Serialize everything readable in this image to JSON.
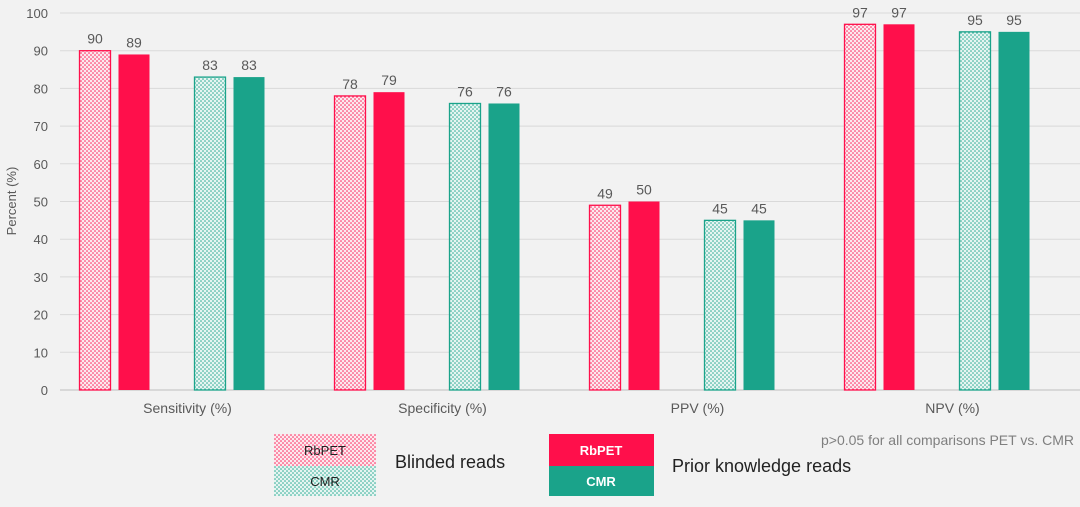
{
  "chart_data": {
    "type": "bar",
    "categories": [
      "Sensitivity (%)",
      "Specificity (%)",
      "PPV (%)",
      "NPV (%)"
    ],
    "series": [
      {
        "name": "RbPET",
        "group": "Blinded reads",
        "style": "dotted",
        "color": "#ff0f4b",
        "values": [
          90,
          78,
          49,
          97
        ]
      },
      {
        "name": "RbPET",
        "group": "Prior knowledge reads",
        "style": "solid",
        "color": "#ff0f4b",
        "values": [
          89,
          79,
          50,
          97
        ]
      },
      {
        "name": "CMR",
        "group": "Blinded reads",
        "style": "dotted",
        "color": "#1aa38a",
        "values": [
          83,
          76,
          45,
          95
        ]
      },
      {
        "name": "CMR",
        "group": "Prior knowledge reads",
        "style": "solid",
        "color": "#1aa38a",
        "values": [
          83,
          76,
          45,
          95
        ]
      }
    ],
    "data_labels": [
      [
        "90",
        "78",
        "49",
        "97"
      ],
      [
        "89",
        "79",
        "50",
        "97"
      ],
      [
        "83",
        "76",
        "45",
        "95"
      ],
      [
        "83",
        "76",
        "45",
        "95"
      ]
    ],
    "ylabel": "Percent (%)",
    "ylim": [
      0,
      100
    ],
    "yticks": [
      0,
      10,
      20,
      30,
      40,
      50,
      60,
      70,
      80,
      90,
      100
    ],
    "grid": true,
    "annotation": "p>0.05 for all comparisons PET vs. CMR",
    "legend": {
      "placement": "bottom",
      "groups": [
        {
          "label": "Blinded reads",
          "style": "dotted",
          "items": [
            "RbPET",
            "CMR"
          ]
        },
        {
          "label": "Prior knowledge reads",
          "style": "solid",
          "items": [
            "RbPET",
            "CMR"
          ]
        }
      ]
    },
    "colors": {
      "rbpet": "#ff0f4b",
      "cmr": "#1aa38a",
      "grid": "#d9d9d9",
      "text": "#595959"
    }
  }
}
